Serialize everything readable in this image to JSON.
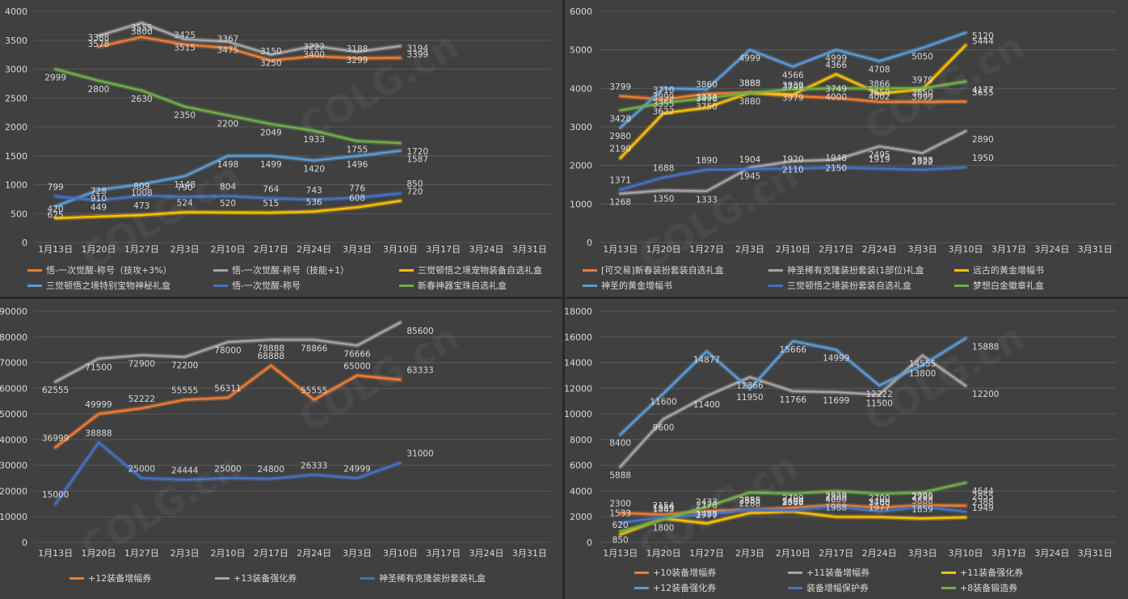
{
  "watermark": "COLG.cn",
  "colors": {
    "background": "#404040",
    "gridline": "#595959",
    "axis_text": "#d9d9d9",
    "label_text": "#d9d9d9"
  },
  "chart_data": [
    {
      "type": "line",
      "categories": [
        "1月13日",
        "1月20日",
        "1月27日",
        "2月3日",
        "2月10日",
        "2月17日",
        "2月24日",
        "3月3日",
        "3月10日",
        "3月17日",
        "3月24日",
        "3月31日"
      ],
      "ylim": [
        0,
        4000
      ],
      "yticks": [
        0,
        500,
        1000,
        1500,
        2000,
        2500,
        3000,
        3500,
        4000
      ],
      "grid": true,
      "legend_position": "bottom",
      "legend_columns": 3,
      "series": [
        {
          "name": "悟-一次觉醒-称号（技攻+3%）",
          "color": "#ed7d31",
          "values": [
            null,
            3388,
            3555,
            3425,
            3367,
            3150,
            3222,
            3188,
            3194,
            null,
            null,
            null
          ]
        },
        {
          "name": "悟-一次觉醒-称号（技能+1）",
          "color": "#a5a5a5",
          "values": [
            null,
            3578,
            3800,
            3515,
            3475,
            3250,
            3400,
            3299,
            3399,
            null,
            null,
            null
          ]
        },
        {
          "name": "三觉顿悟之境宠物装备自选礼盒",
          "color": "#ffc000",
          "values": [
            420,
            449,
            473,
            524,
            520,
            515,
            536,
            608,
            720,
            null,
            null,
            null
          ]
        },
        {
          "name": "三觉顿悟之境特别宝物神秘礼盒",
          "color": "#5b9bd5",
          "values": [
            625,
            910,
            1008,
            1148,
            1498,
            1499,
            1420,
            1496,
            1587,
            null,
            null,
            null
          ]
        },
        {
          "name": "悟-一次觉醒-称号",
          "color": "#4472c4",
          "values": [
            799,
            728,
            809,
            790,
            804,
            764,
            743,
            776,
            850,
            null,
            null,
            null
          ]
        },
        {
          "name": "新春神器宝珠自选礼盒",
          "color": "#70ad47",
          "values": [
            2999,
            2800,
            2630,
            2350,
            2200,
            2049,
            1933,
            1755,
            1720,
            null,
            null,
            null
          ]
        }
      ]
    },
    {
      "type": "line",
      "categories": [
        "1月13日",
        "1月20日",
        "1月27日",
        "2月3日",
        "2月10日",
        "2月17日",
        "2月24日",
        "3月3日",
        "3月10日",
        "3月17日",
        "3月24日",
        "3月31日"
      ],
      "ylim": [
        0,
        6000
      ],
      "yticks": [
        0,
        1000,
        2000,
        3000,
        4000,
        5000,
        6000
      ],
      "grid": true,
      "legend_position": "bottom",
      "legend_columns": 3,
      "series": [
        {
          "name": "[可交易]新春装扮套装自选礼盒",
          "color": "#ed7d31",
          "values": [
            3799,
            3710,
            3860,
            3888,
            3799,
            3749,
            3650,
            3650,
            3655,
            null,
            null,
            null
          ]
        },
        {
          "name": "神圣稀有克隆装扮套装(1部位)礼盒",
          "color": "#a5a5a5",
          "values": [
            1268,
            1350,
            1333,
            1945,
            2110,
            2150,
            2495,
            2322,
            2890,
            null,
            null,
            null
          ]
        },
        {
          "name": "远古的黄金增幅书",
          "color": "#ffc000",
          "values": [
            2190,
            3355,
            3498,
            3888,
            3839,
            4366,
            3866,
            3979,
            5120,
            null,
            null,
            null
          ]
        },
        {
          "name": "神圣的黄金增幅书",
          "color": "#5b9bd5",
          "values": [
            2980,
            3999,
            3978,
            4999,
            4566,
            4999,
            4708,
            5050,
            5444,
            null,
            null,
            null
          ]
        },
        {
          "name": "三觉顿悟之境装扮套装自选礼盒",
          "color": "#4472c4",
          "values": [
            1371,
            1688,
            1890,
            1904,
            1920,
            1948,
            1919,
            1888,
            1950,
            null,
            null,
            null
          ]
        },
        {
          "name": "梦想白金徽章礼盒",
          "color": "#70ad47",
          "values": [
            3428,
            3622,
            3750,
            3880,
            3979,
            4000,
            4002,
            3999,
            4177,
            null,
            null,
            null
          ]
        }
      ]
    },
    {
      "type": "line",
      "categories": [
        "1月13日",
        "1月20日",
        "1月27日",
        "2月3日",
        "2月10日",
        "2月17日",
        "2月24日",
        "3月3日",
        "3月10日",
        "3月17日",
        "3月24日",
        "3月31日"
      ],
      "ylim": [
        0,
        90000
      ],
      "yticks": [
        0,
        10000,
        20000,
        30000,
        40000,
        50000,
        60000,
        70000,
        80000,
        90000
      ],
      "grid": true,
      "legend_position": "bottom",
      "legend_columns": 3,
      "series": [
        {
          "name": "+12装备增幅券",
          "color": "#ed7d31",
          "values": [
            36999,
            49999,
            52222,
            55555,
            56311,
            68888,
            55555,
            65000,
            63333,
            null,
            null,
            null
          ]
        },
        {
          "name": "+13装备强化券",
          "color": "#a5a5a5",
          "values": [
            62555,
            71500,
            72900,
            72200,
            78000,
            78888,
            78866,
            76666,
            85600,
            null,
            null,
            null
          ]
        },
        {
          "name": "神圣稀有克隆装扮套装礼盒",
          "color": "#4472c4",
          "values": [
            15000,
            38888,
            25000,
            24444,
            25000,
            24800,
            26333,
            24999,
            31000,
            null,
            null,
            null
          ]
        }
      ]
    },
    {
      "type": "line",
      "categories": [
        "1月13日",
        "1月20日",
        "1月27日",
        "2月3日",
        "2月10日",
        "2月17日",
        "2月24日",
        "3月3日",
        "3月10日",
        "3月17日",
        "3月24日",
        "3月31日"
      ],
      "ylim": [
        0,
        18000
      ],
      "yticks": [
        0,
        2000,
        4000,
        6000,
        8000,
        10000,
        12000,
        14000,
        16000,
        18000
      ],
      "grid": true,
      "legend_position": "bottom",
      "legend_columns": 3,
      "series": [
        {
          "name": "+10装备增幅券",
          "color": "#ed7d31",
          "values": [
            2300,
            2154,
            2433,
            2555,
            2700,
            2929,
            2700,
            2900,
            2855,
            null,
            null,
            null
          ]
        },
        {
          "name": "+11装备增幅券",
          "color": "#a5a5a5",
          "values": [
            5888,
            9600,
            11400,
            12866,
            11766,
            11699,
            11500,
            14555,
            12200,
            null,
            null,
            null
          ]
        },
        {
          "name": "+11装备强化券",
          "color": "#ffc000",
          "values": [
            620,
            1865,
            1488,
            2288,
            2388,
            1988,
            1977,
            1859,
            1949,
            null,
            null,
            null
          ]
        },
        {
          "name": "+12装备强化券",
          "color": "#5b9bd5",
          "values": [
            8400,
            11600,
            14877,
            11950,
            15666,
            14999,
            12222,
            13800,
            15888,
            null,
            null,
            null
          ]
        },
        {
          "name": "装备增幅保护券",
          "color": "#4472c4",
          "values": [
            1533,
            1959,
            2178,
            2555,
            2490,
            2800,
            2400,
            2785,
            2388,
            null,
            null,
            null
          ]
        },
        {
          "name": "+8装备锻造券",
          "color": "#70ad47",
          "values": [
            850,
            1800,
            2777,
            3888,
            3800,
            4000,
            3788,
            3888,
            4644,
            null,
            null,
            null
          ]
        }
      ]
    }
  ]
}
